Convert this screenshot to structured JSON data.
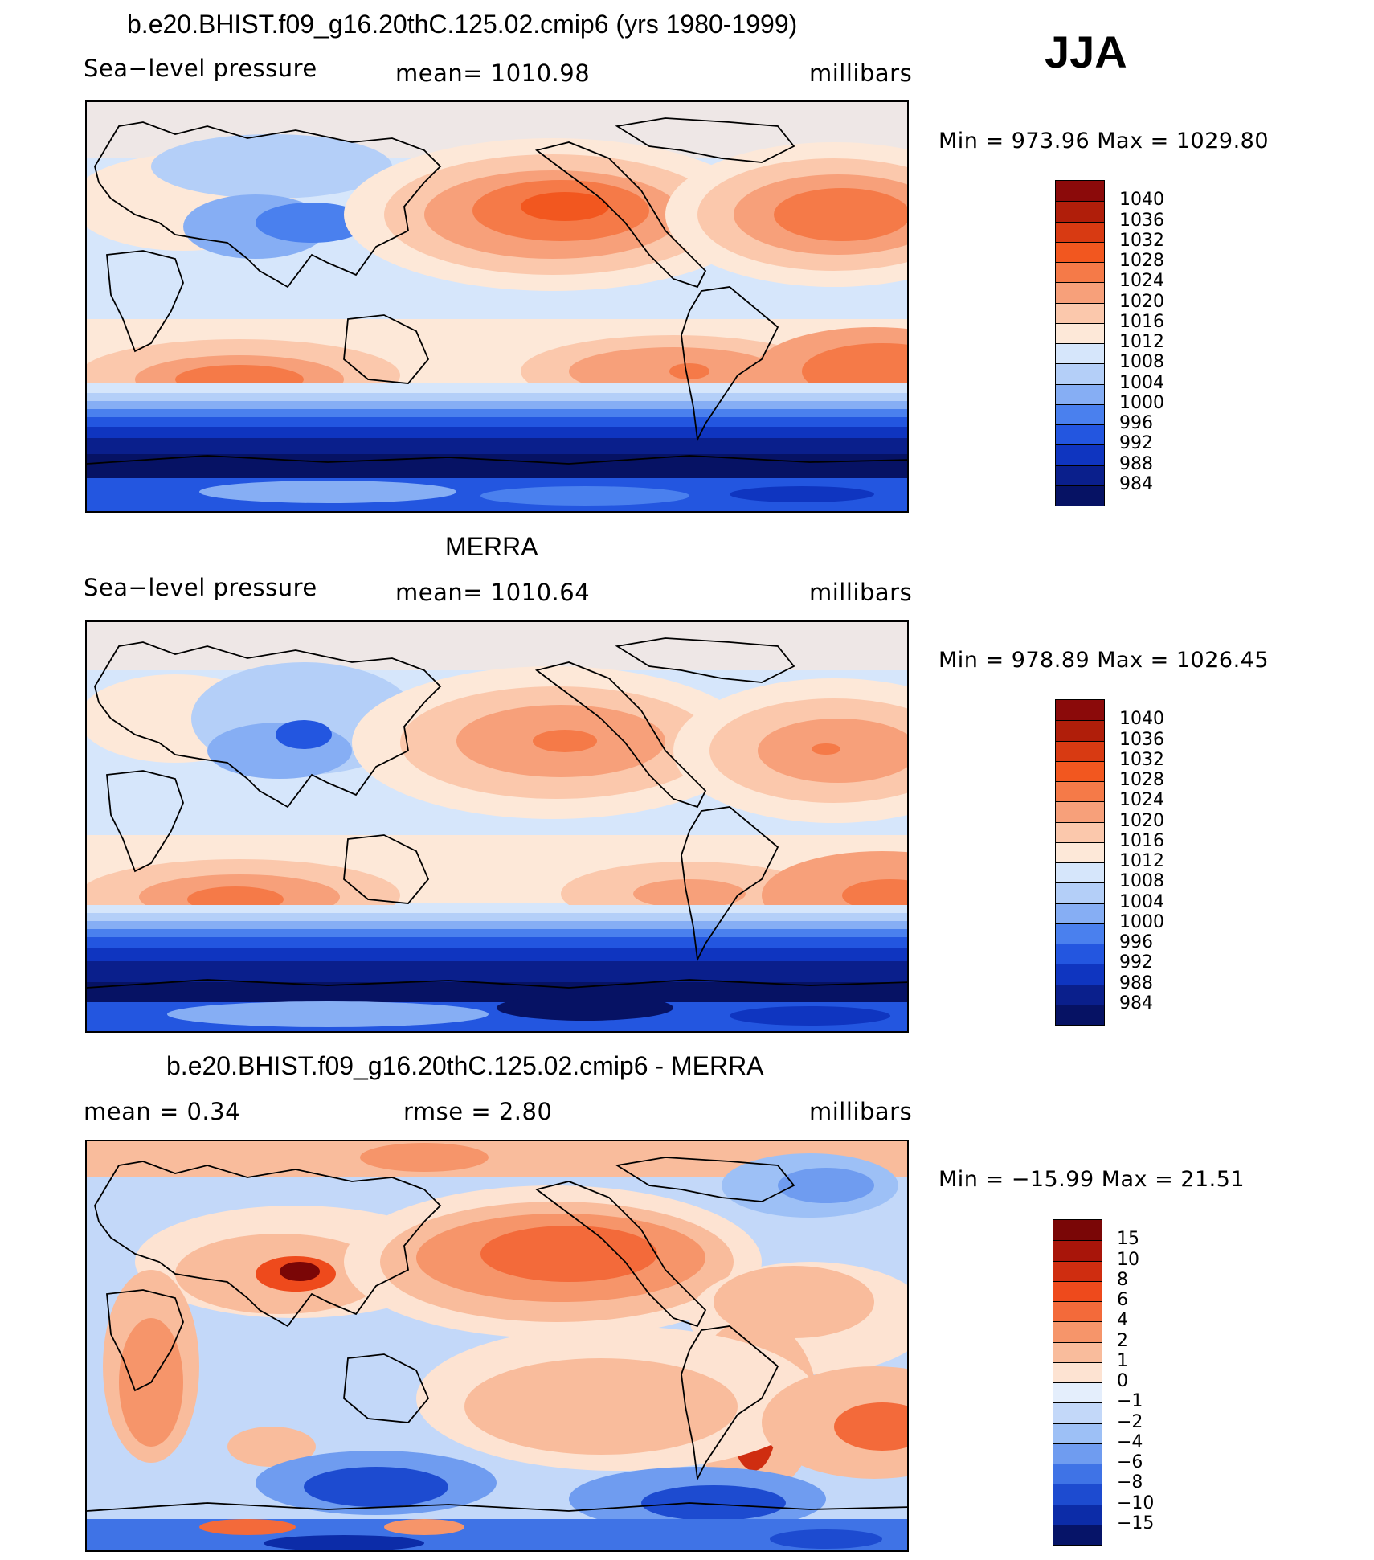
{
  "season": "JJA",
  "panels": [
    {
      "title": "b.e20.BHIST.f09_g16.20thC.125.02.cmip6 (yrs 1980-1999)",
      "left_label": "Sea−level pressure",
      "center_label": "mean=  1010.98",
      "right_label": "millibars",
      "minmax": "Min  =  973.96  Max  =  1029.80",
      "colorbar_labels": [
        "1040",
        "1036",
        "1032",
        "1028",
        "1024",
        "1020",
        "1016",
        "1012",
        "1008",
        "1004",
        "1000",
        "996",
        "992",
        "988",
        "984"
      ]
    },
    {
      "title": "MERRA",
      "left_label": "Sea−level pressure",
      "center_label": "mean=  1010.64",
      "right_label": "millibars",
      "minmax": "Min  =  978.89  Max  =  1026.45",
      "colorbar_labels": [
        "1040",
        "1036",
        "1032",
        "1028",
        "1024",
        "1020",
        "1016",
        "1012",
        "1008",
        "1004",
        "1000",
        "996",
        "992",
        "988",
        "984"
      ]
    },
    {
      "title": "b.e20.BHIST.f09_g16.20thC.125.02.cmip6 - MERRA",
      "left_label": "mean  =     0.34",
      "center_label": "rmse  =     2.80",
      "right_label": "millibars",
      "minmax": "Min  =  −15.99  Max  =    21.51",
      "colorbar_labels": [
        "15",
        "10",
        "8",
        "6",
        "4",
        "2",
        "1",
        "0",
        "−1",
        "−2",
        "−4",
        "−6",
        "−8",
        "−10",
        "−15"
      ]
    }
  ],
  "colors": {
    "abs_scale": [
      "#8b0a0a",
      "#b01e0a",
      "#d83a12",
      "#f2571f",
      "#f57a48",
      "#f7a07a",
      "#fbc8ac",
      "#fde8d8",
      "#d6e6fb",
      "#b4cff8",
      "#86aef4",
      "#4a80ee",
      "#2356e0",
      "#0f35c0",
      "#0a1f8c",
      "#061264"
    ],
    "diff_scale": [
      "#7a0606",
      "#a8150a",
      "#cf2d10",
      "#ee4a1c",
      "#f36a3a",
      "#f6956a",
      "#f9bc9c",
      "#fde3d2",
      "#e4eefc",
      "#c3d8f9",
      "#9dc0f6",
      "#6f9cf0",
      "#3f73e6",
      "#1d4bd0",
      "#0c2ca8",
      "#061468"
    ]
  }
}
